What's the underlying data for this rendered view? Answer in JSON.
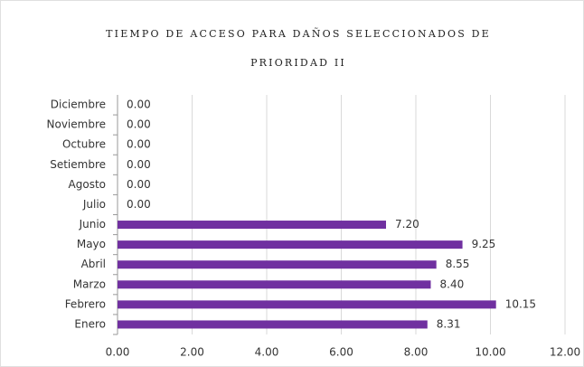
{
  "chart_data": {
    "type": "bar",
    "orientation": "horizontal",
    "title": "TIEMPO DE ACCESO PARA DAÑOS SELECCIONADOS DE PRIORIDAD II",
    "categories": [
      "Enero",
      "Febrero",
      "Marzo",
      "Abril",
      "Mayo",
      "Junio",
      "Julio",
      "Agosto",
      "Setiembre",
      "Octubre",
      "Noviembre",
      "Diciembre"
    ],
    "values": [
      8.31,
      10.15,
      8.4,
      8.55,
      9.25,
      7.2,
      0,
      0,
      0,
      0,
      0,
      0
    ],
    "value_labels": [
      "8.31",
      "10.15",
      "8.40",
      "8.55",
      "9.25",
      "7.20",
      "0.00",
      "0.00",
      "0.00",
      "0.00",
      "0.00",
      "0.00"
    ],
    "color": "#7030a0",
    "xlim": [
      0,
      12
    ],
    "xticks": [
      {
        "value": 0,
        "label": "0.00"
      },
      {
        "value": 2,
        "label": "2.00"
      },
      {
        "value": 4,
        "label": "4.00"
      },
      {
        "value": 6,
        "label": "6.00"
      },
      {
        "value": 8,
        "label": "8.00"
      },
      {
        "value": 10,
        "label": "10.00"
      },
      {
        "value": 12,
        "label": "12.00"
      }
    ],
    "grid": true
  }
}
